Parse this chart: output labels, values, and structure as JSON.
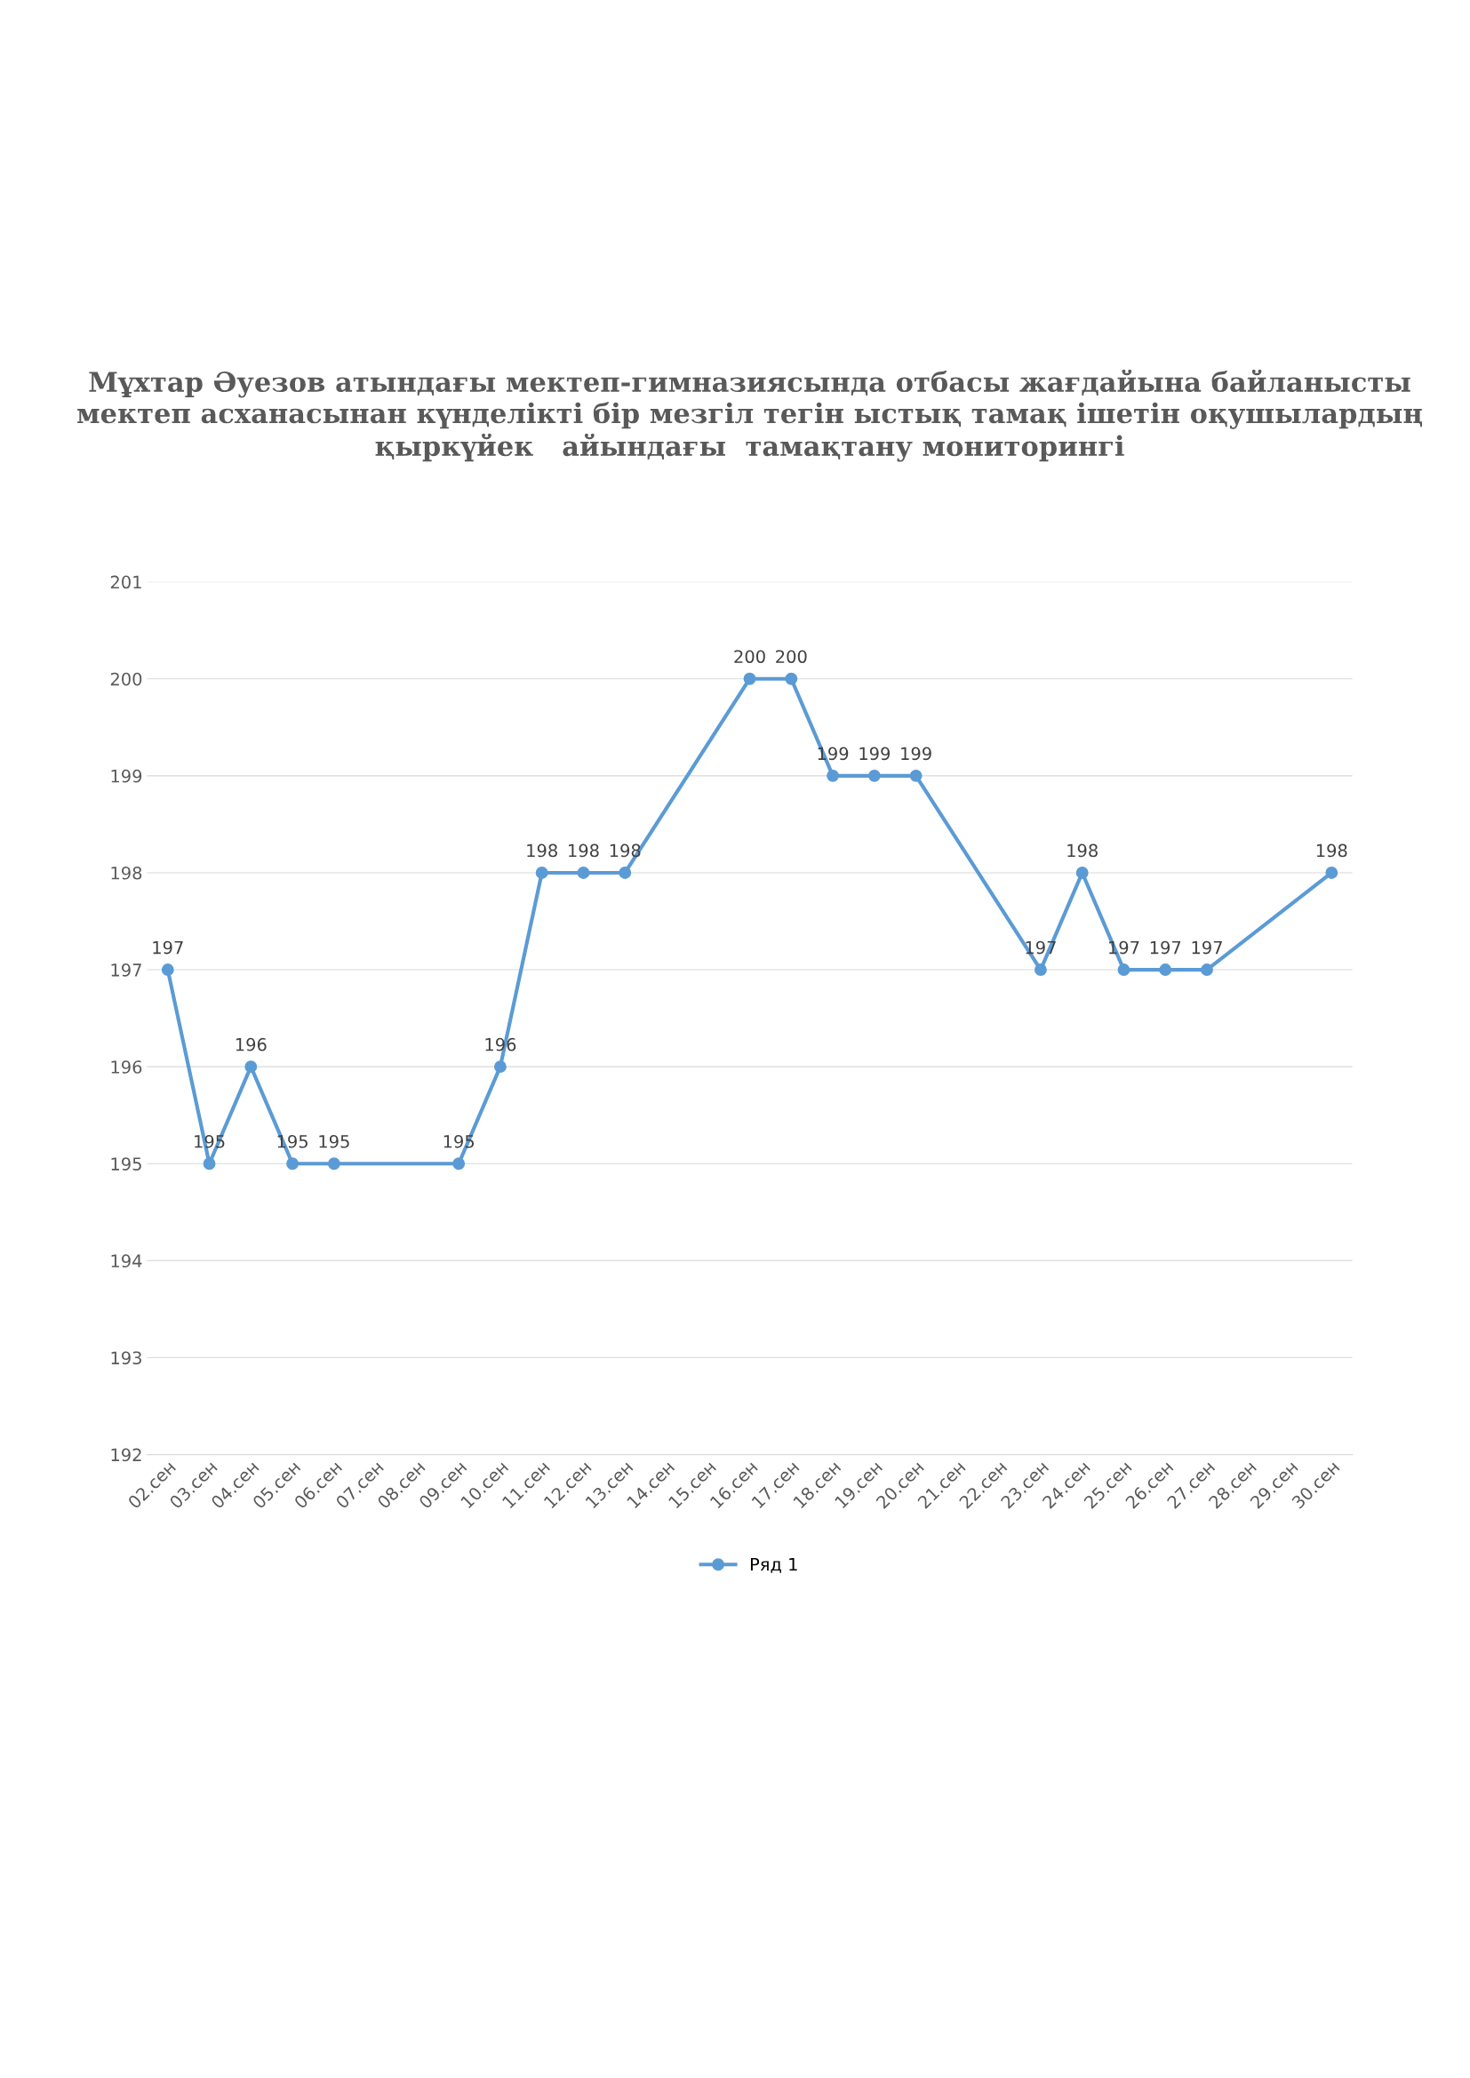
{
  "chart_data": {
    "type": "line",
    "title": "Мұхтар Әуезов атындағы мектеп-гимназиясында отбасы жағдайына байланысты мектеп асханасынан күнделікті бір мезгіл тегін ыстық тамақ ішетін оқушылардың қыркүйек   айындағы  тамақтану мониторингі",
    "categories": [
      "02.сен",
      "03.сен",
      "04.сен",
      "05.сен",
      "06.сен",
      "07.сен",
      "08.сен",
      "09.сен",
      "10.сен",
      "11.сен",
      "12.сен",
      "13.сен",
      "14.сен",
      "15.сен",
      "16.сен",
      "17.сен",
      "18.сен",
      "19.сен",
      "20.сен",
      "21.сен",
      "22.сен",
      "23.сен",
      "24.сен",
      "25.сен",
      "26.сен",
      "27.сен",
      "28.сен",
      "29.сен",
      "30.сен"
    ],
    "series": [
      {
        "name": "Ряд 1",
        "color": "#5b9bd5",
        "values": [
          197,
          195,
          196,
          195,
          195,
          null,
          null,
          195,
          196,
          198,
          198,
          198,
          null,
          null,
          200,
          200,
          199,
          199,
          199,
          null,
          null,
          197,
          198,
          197,
          197,
          197,
          null,
          null,
          198
        ]
      }
    ],
    "ylim": [
      192,
      201
    ],
    "yticks": [
      192,
      193,
      194,
      195,
      196,
      197,
      198,
      199,
      200,
      201
    ],
    "grid": "y",
    "legend": "bottom",
    "marker": "circle",
    "line_style": "solid",
    "data_labels": true
  }
}
